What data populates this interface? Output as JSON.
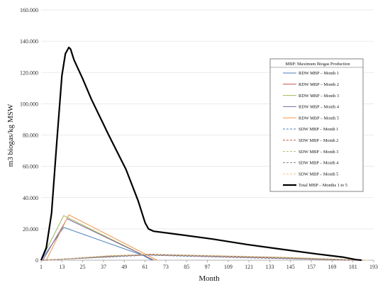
{
  "chart_data": {
    "type": "line",
    "xlabel": "Month",
    "ylabel": "m3 biogas/kg MSW",
    "xlim": [
      1,
      193
    ],
    "ylim": [
      0,
      160000
    ],
    "x_ticks": [
      1,
      13,
      25,
      37,
      49,
      61,
      73,
      85,
      97,
      109,
      121,
      133,
      145,
      157,
      169,
      181,
      193
    ],
    "y_ticks": [
      0,
      20000,
      40000,
      60000,
      80000,
      100000,
      120000,
      140000,
      160000
    ],
    "y_tick_labels": [
      "0",
      "20.000",
      "40.000",
      "60.000",
      "80.000",
      "100.000",
      "120.000",
      "140.000",
      "160.000"
    ],
    "legend": {
      "title": "MBP: Maximum Biogas Production",
      "placement": "right"
    },
    "series": [
      {
        "name": "RDW MBP – Month 1",
        "color": "#4a7ebb",
        "dash": "solid",
        "width": 1,
        "points": [
          [
            1,
            0
          ],
          [
            14,
            21000
          ],
          [
            60,
            3000
          ],
          [
            65,
            0
          ]
        ]
      },
      {
        "name": "RDW MBP – Month 2",
        "color": "#c0504d",
        "dash": "solid",
        "width": 1,
        "points": [
          [
            1,
            0
          ],
          [
            20,
            1000
          ],
          [
            64,
            3800
          ],
          [
            120,
            2000
          ],
          [
            180,
            0
          ]
        ]
      },
      {
        "name": "RDW MBP – Month 3",
        "color": "#9bbb59",
        "dash": "solid",
        "width": 1,
        "points": [
          [
            1,
            0
          ],
          [
            14,
            28500
          ],
          [
            66,
            0
          ]
        ]
      },
      {
        "name": "RDW MBP – Month 4",
        "color": "#8064a2",
        "dash": "solid",
        "width": 1,
        "points": [
          [
            2,
            0
          ],
          [
            16,
            26500
          ],
          [
            66,
            0
          ]
        ]
      },
      {
        "name": "RDW MBP – Month 5",
        "color": "#f79646",
        "dash": "solid",
        "width": 1,
        "points": [
          [
            4,
            0
          ],
          [
            17,
            29000
          ],
          [
            68,
            0
          ]
        ]
      },
      {
        "name": "SDW MBP – Month 1",
        "color": "#4a7ebb",
        "dash": "dashed",
        "width": 1,
        "points": [
          [
            1,
            0
          ],
          [
            40,
            2000
          ],
          [
            62,
            3200
          ],
          [
            120,
            1500
          ],
          [
            182,
            0
          ]
        ]
      },
      {
        "name": "SDW MBP – Month 2",
        "color": "#c0504d",
        "dash": "dashed",
        "width": 1,
        "points": [
          [
            2,
            0
          ],
          [
            40,
            2300
          ],
          [
            63,
            3400
          ],
          [
            125,
            1700
          ],
          [
            184,
            0
          ]
        ]
      },
      {
        "name": "SDW MBP – Month 3",
        "color": "#b7b76a",
        "dash": "dashed",
        "width": 1,
        "points": [
          [
            3,
            0
          ],
          [
            40,
            2500
          ],
          [
            64,
            3600
          ],
          [
            130,
            1800
          ],
          [
            186,
            0
          ]
        ]
      },
      {
        "name": "SDW MBP – Month 4",
        "color": "#7f7f9f",
        "dash": "dashed",
        "width": 1,
        "points": [
          [
            4,
            0
          ],
          [
            40,
            2700
          ],
          [
            65,
            3700
          ],
          [
            135,
            1900
          ],
          [
            188,
            0
          ]
        ]
      },
      {
        "name": "SDW MBP – Month 5",
        "color": "#f2c879",
        "dash": "dashed",
        "width": 1,
        "points": [
          [
            5,
            0
          ],
          [
            40,
            2900
          ],
          [
            66,
            3800
          ],
          [
            140,
            2000
          ],
          [
            190,
            0
          ]
        ]
      },
      {
        "name": "Total MBP – Months 1 to 5",
        "color": "#000000",
        "dash": "solid",
        "width": 2.2,
        "points": [
          [
            1,
            0
          ],
          [
            4,
            8000
          ],
          [
            7,
            30000
          ],
          [
            10,
            75000
          ],
          [
            13,
            118000
          ],
          [
            15,
            132000
          ],
          [
            17,
            136000
          ],
          [
            18,
            135000
          ],
          [
            20,
            128000
          ],
          [
            25,
            116000
          ],
          [
            30,
            103000
          ],
          [
            40,
            80000
          ],
          [
            50,
            58000
          ],
          [
            57,
            38000
          ],
          [
            61,
            24000
          ],
          [
            63,
            20000
          ],
          [
            66,
            18500
          ],
          [
            80,
            16500
          ],
          [
            100,
            13500
          ],
          [
            120,
            10000
          ],
          [
            140,
            7000
          ],
          [
            160,
            4000
          ],
          [
            175,
            2000
          ],
          [
            183,
            300
          ],
          [
            186,
            0
          ]
        ]
      }
    ]
  }
}
